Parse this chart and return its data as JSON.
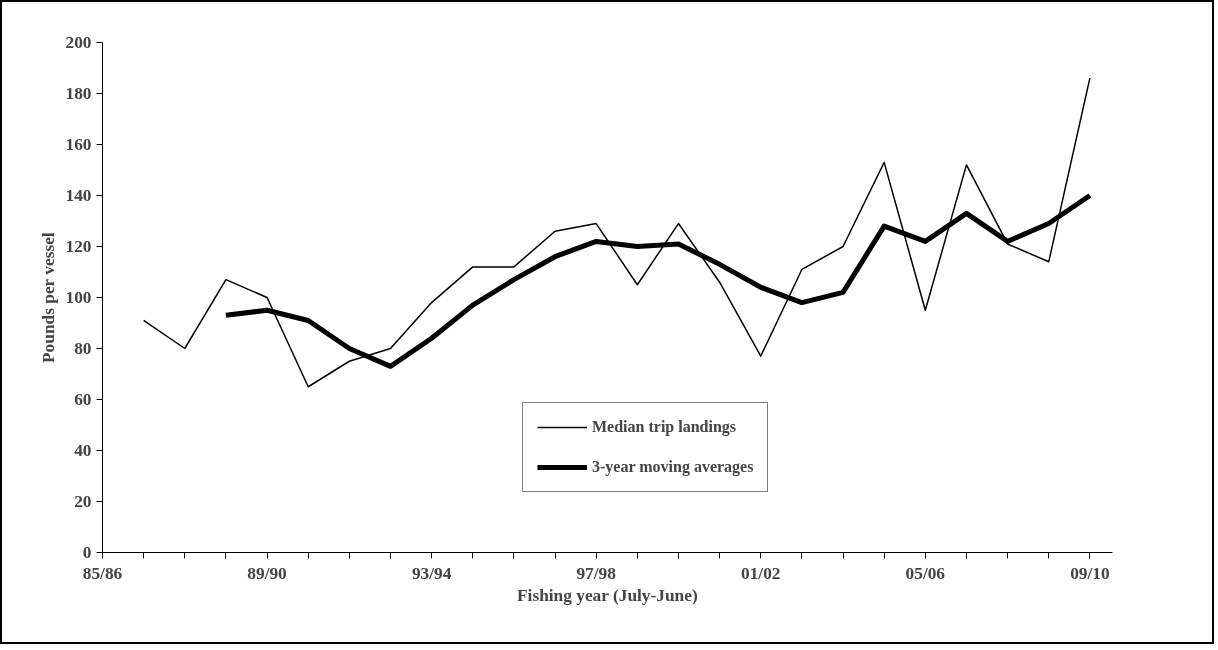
{
  "chart_data": {
    "type": "line",
    "xlabel": "Fishing year (July-June)",
    "ylabel": "Pounds per vessel",
    "categories": [
      "85/86",
      null,
      null,
      null,
      "89/90",
      null,
      null,
      null,
      "93/94",
      null,
      null,
      null,
      "97/98",
      null,
      null,
      null,
      "01/02",
      null,
      null,
      null,
      "05/06",
      null,
      null,
      null,
      "09/10"
    ],
    "series": [
      {
        "name": "Median trip landings",
        "color": "#000000",
        "values": [
          null,
          91,
          80,
          107,
          100,
          65,
          75,
          80,
          98,
          112,
          112,
          126,
          129,
          105,
          129,
          106,
          77,
          111,
          120,
          153,
          95,
          152,
          121,
          114,
          186
        ]
      },
      {
        "name": "3-year moving averages",
        "color": "#000000",
        "values": [
          null,
          null,
          null,
          93,
          95,
          91,
          80,
          73,
          84,
          97,
          107,
          116,
          122,
          120,
          121,
          113,
          104,
          98,
          102,
          128,
          122,
          133,
          122,
          129,
          140
        ]
      }
    ],
    "ylim": [
      0,
      200
    ],
    "yticks": [
      0,
      20,
      40,
      60,
      80,
      100,
      120,
      140,
      160,
      180,
      200
    ],
    "grid": false,
    "legend": "bottom right",
    "marker": "none",
    "line_style": "solid"
  }
}
